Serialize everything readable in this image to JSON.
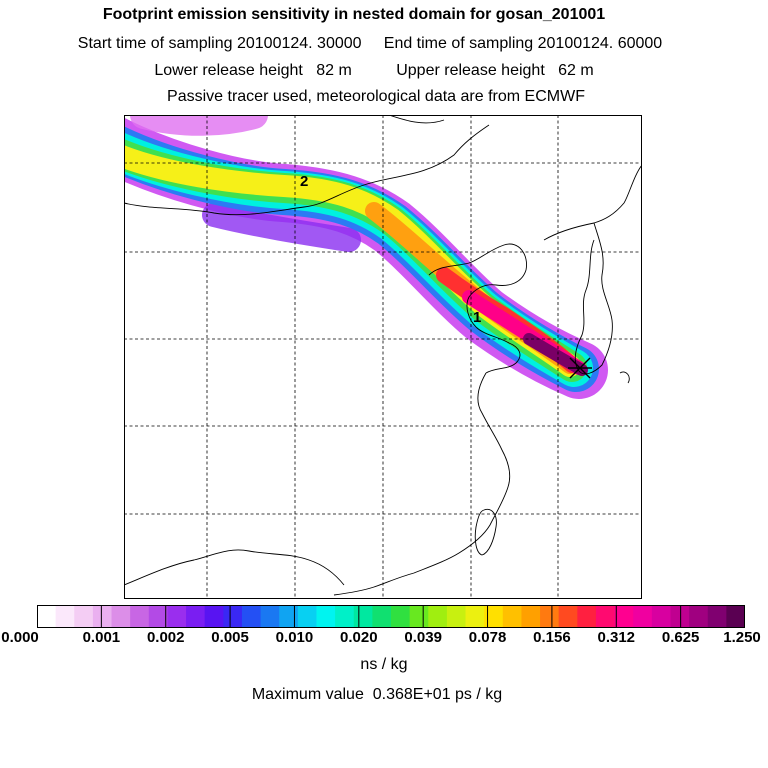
{
  "header": {
    "title": "Footprint emission sensitivity in nested domain for gosan_201001",
    "sampling": "Start time of sampling 20100124. 30000     End time of sampling 20100124. 60000",
    "heights": "Lower release height   82 m          Upper release height   62 m",
    "tracer": "Passive tracer used, meteorological data are from ECMWF"
  },
  "map": {
    "trajectory_labels": [
      "1",
      "2"
    ]
  },
  "colorbar": {
    "tick_labels": [
      "0.000",
      "0.001",
      "0.002",
      "0.005",
      "0.010",
      "0.020",
      "0.039",
      "0.078",
      "0.156",
      "0.312",
      "0.625",
      "1.250"
    ],
    "colors": [
      "#ffffff",
      "#fbe8fb",
      "#f4cdf4",
      "#eab0f0",
      "#dc8ee8",
      "#c866e4",
      "#b34ae6",
      "#9a2eee",
      "#7a1ef2",
      "#5814f2",
      "#3a28f4",
      "#2450f4",
      "#1a78f2",
      "#10a4f2",
      "#08d0f2",
      "#00f4f0",
      "#00f0c8",
      "#00e8a0",
      "#10e070",
      "#30e040",
      "#68e820",
      "#a0ee10",
      "#c8f010",
      "#ecf010",
      "#ffe000",
      "#ffc000",
      "#ffa000",
      "#ff7a10",
      "#ff4a20",
      "#ff2040",
      "#ff0a70",
      "#ff0090",
      "#f000a0",
      "#d800a0",
      "#c00090",
      "#a00080",
      "#800070",
      "#5a0052"
    ],
    "units": "ns / kg"
  },
  "max_value_text": "Maximum value  0.368E+01 ps / kg"
}
